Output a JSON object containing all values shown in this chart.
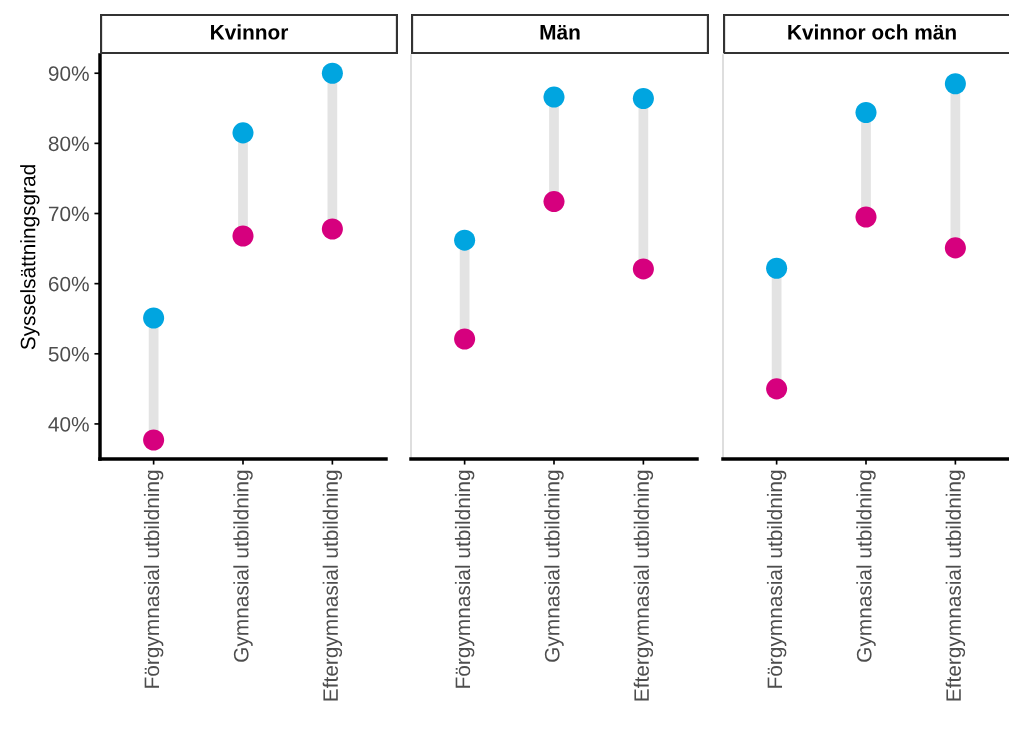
{
  "chart_data": [
    {
      "type": "scatter",
      "title": "Kvinnor",
      "ylabel": "Sysselsättningsgrad",
      "categories": [
        "Förgymnasial utbildning",
        "Gymnasial utbildning",
        "Eftergymnasial utbildning"
      ],
      "ylim": [
        35,
        92.6
      ],
      "yticks": [
        {
          "value": 40,
          "label": "40%"
        },
        {
          "value": 50,
          "label": "50%"
        },
        {
          "value": 60,
          "label": "60%"
        },
        {
          "value": 70,
          "label": "70%"
        },
        {
          "value": 80,
          "label": "80%"
        },
        {
          "value": 90,
          "label": "90%"
        }
      ],
      "grid": false,
      "marker": "circle",
      "series": [
        {
          "color": "#d6007e",
          "values": [
            37.7,
            66.8,
            67.8
          ]
        },
        {
          "color": "#00a5e0",
          "values": [
            55.1,
            81.5,
            90.0
          ]
        }
      ]
    },
    {
      "type": "scatter",
      "title": "Män",
      "categories": [
        "Förgymnasial utbildning",
        "Gymnasial utbildning",
        "Eftergymnasial utbildning"
      ],
      "ylim": [
        35,
        92.6
      ],
      "tick_labels": "x",
      "grid": false,
      "marker": "circle",
      "series": [
        {
          "color": "#d6007e",
          "values": [
            52.1,
            71.7,
            62.1
          ]
        },
        {
          "color": "#00a5e0",
          "values": [
            66.2,
            86.6,
            86.4
          ]
        }
      ]
    },
    {
      "type": "scatter",
      "title": "Kvinnor och män",
      "categories": [
        "Förgymnasial utbildning",
        "Gymnasial utbildning",
        "Eftergymnasial utbildning"
      ],
      "ylim": [
        35,
        92.6
      ],
      "tick_labels": "x",
      "grid": false,
      "marker": "circle",
      "series": [
        {
          "color": "#d6007e",
          "values": [
            45.0,
            69.5,
            65.1
          ]
        },
        {
          "color": "#00a5e0",
          "values": [
            62.2,
            84.4,
            88.5
          ]
        }
      ]
    }
  ]
}
